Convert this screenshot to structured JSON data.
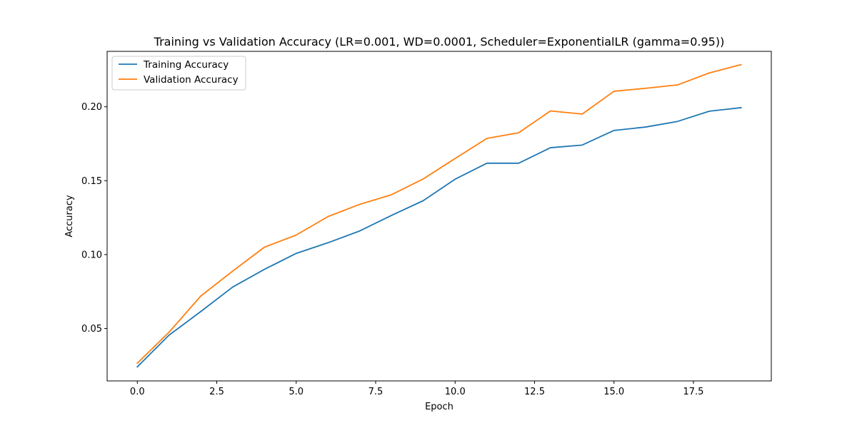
{
  "chart_data": {
    "type": "line",
    "title": "Training vs Validation Accuracy (LR=0.001, WD=0.0001, Scheduler=ExponentialLR (gamma=0.95))",
    "xlabel": "Epoch",
    "ylabel": "Accuracy",
    "x": [
      0,
      1,
      2,
      3,
      4,
      5,
      6,
      7,
      8,
      9,
      10,
      11,
      12,
      13,
      14,
      15,
      16,
      17,
      18,
      19
    ],
    "xlim": [
      -0.95,
      19.95
    ],
    "ylim": [
      0.0145,
      0.2375
    ],
    "xticks": [
      0.0,
      2.5,
      5.0,
      7.5,
      10.0,
      12.5,
      15.0,
      17.5
    ],
    "xtick_labels": [
      "0.0",
      "2.5",
      "5.0",
      "7.5",
      "10.0",
      "12.5",
      "15.0",
      "17.5"
    ],
    "yticks": [
      0.05,
      0.1,
      0.15,
      0.2
    ],
    "ytick_labels": [
      "0.05",
      "0.10",
      "0.15",
      "0.20"
    ],
    "grid": false,
    "legend": "upper-left",
    "series": [
      {
        "name": "Training Accuracy",
        "color": "#1f77b4",
        "values": [
          0.024,
          0.0455,
          0.0615,
          0.078,
          0.09,
          0.1008,
          0.108,
          0.116,
          0.1265,
          0.1365,
          0.151,
          0.1618,
          0.1618,
          0.1723,
          0.1741,
          0.184,
          0.1863,
          0.1901,
          0.197,
          0.1994
        ]
      },
      {
        "name": "Validation Accuracy",
        "color": "#ff7f0e",
        "values": [
          0.0265,
          0.0475,
          0.072,
          0.0888,
          0.105,
          0.1132,
          0.1257,
          0.134,
          0.1405,
          0.1512,
          0.165,
          0.1786,
          0.1824,
          0.1972,
          0.1951,
          0.2105,
          0.2125,
          0.2148,
          0.2229,
          0.2285
        ]
      }
    ]
  }
}
